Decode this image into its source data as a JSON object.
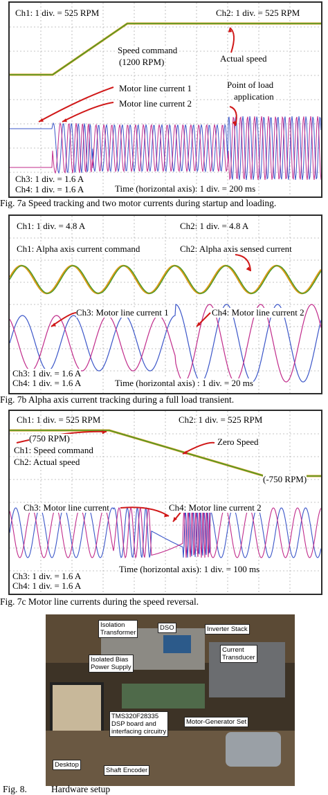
{
  "fig7a": {
    "ch1": "Ch1: 1 div. = 525 RPM",
    "ch2": "Ch2: 1 div. = 525 RPM",
    "speed_command": "Speed command",
    "speed_command_value": "(1200 RPM)",
    "actual_speed": "Actual speed",
    "motor_current_1": "Motor line current 1",
    "motor_current_2": "Motor line current 2",
    "load_point_1": "Point of load",
    "load_point_2": "application",
    "ch3": "Ch3: 1 div. = 1.6 A",
    "ch4": "Ch4: 1 div. = 1.6 A",
    "time": "Time (horizontal axis): 1 div. = 200 ms",
    "caption": "Fig. 7a   Speed tracking and two motor currents during startup and loading."
  },
  "fig7b": {
    "ch1": "Ch1: 1 div. = 4.8 A",
    "ch2": "Ch2: 1 div. = 4.8 A",
    "alpha_cmd": "Ch1: Alpha axis current command",
    "alpha_sensed": "Ch2: Alpha axis sensed current",
    "ch3_name": "Ch3: Motor line current 1",
    "ch4_name": "Ch4: Motor line current 2",
    "ch3": "Ch3: 1 div. = 1.6 A",
    "ch4": "Ch4: 1 div. = 1.6 A",
    "time": "Time (horizontal axis) : 1 div. = 20 ms",
    "caption": "Fig. 7b  Alpha axis current tracking during a full load transient."
  },
  "fig7c": {
    "ch1": "Ch1: 1 div. = 525 RPM",
    "ch2": "Ch2: 1 div. = 525 RPM",
    "rpm_start": "(750 RPM)",
    "ch1_name": "Ch1: Speed command",
    "ch2_name": "Ch2: Actual speed",
    "zero_speed": "Zero Speed",
    "rpm_end": "(-750 RPM)",
    "ch3_name": "Ch3: Motor line current",
    "ch4_name": "Ch4: Motor line current 2",
    "ch3": "Ch3: 1 div. = 1.6 A",
    "ch4": "Ch4: 1 div. = 1.6 A",
    "time": "Time (horizontal axis): 1 div. = 100 ms",
    "caption": "Fig. 7c  Motor line currents during the speed reversal."
  },
  "fig8": {
    "tags": {
      "isolation_1": "Isolation",
      "isolation_2": "Transformer",
      "dso": "DSO",
      "inverter": "Inverter Stack",
      "current_1": "Current",
      "current_2": "Transducer",
      "bias_1": "Isolated Bias",
      "bias_2": "Power Supply",
      "dsp_1": "TMS320F28335",
      "dsp_2": "DSP board and",
      "dsp_3": "interfacing circuitry",
      "motor_gen": "Motor-Generator Set",
      "desktop": "Desktop",
      "encoder": "Shaft Encoder"
    },
    "caption_num": "Fig. 8.",
    "caption_text": "Hardware setup"
  },
  "colors": {
    "green": "#4a9a2a",
    "blue": "#3a55c8",
    "magenta": "#c02a8a",
    "orange": "#d99a1a",
    "red": "#d01818",
    "grid": "#b0b0b0"
  }
}
